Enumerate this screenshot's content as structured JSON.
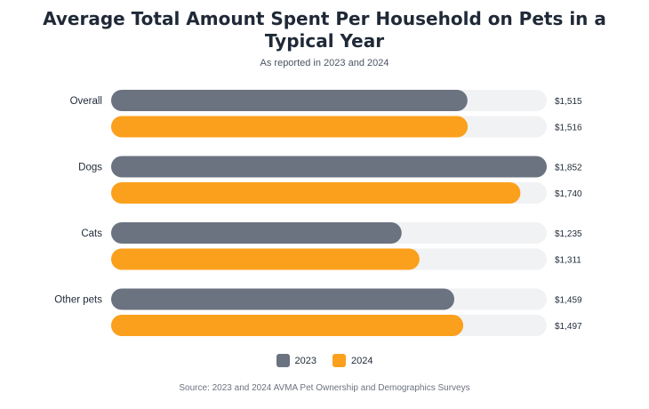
{
  "chart_data": {
    "type": "bar",
    "orientation": "horizontal",
    "title": "Average Total Amount Spent Per Household on Pets in a Typical Year",
    "subtitle": "As reported in 2023 and 2024",
    "categories": [
      "Overall",
      "Dogs",
      "Cats",
      "Other pets"
    ],
    "series": [
      {
        "name": "2023",
        "color": "#6b7280",
        "values": [
          1515,
          1852,
          1235,
          1459
        ],
        "labels": [
          "$1,515",
          "$1,852",
          "$1,235",
          "$1,459"
        ]
      },
      {
        "name": "2024",
        "color": "#fba01c",
        "values": [
          1516,
          1740,
          1311,
          1497
        ],
        "labels": [
          "$1,516",
          "$1,740",
          "$1,311",
          "$1,497"
        ]
      }
    ],
    "xlim": [
      0,
      1852
    ],
    "track_color": "#f1f2f4",
    "legend_position": "bottom-center",
    "grid": false,
    "source": "Source: 2023 and 2024 AVMA Pet Ownership and Demographics Surveys"
  }
}
